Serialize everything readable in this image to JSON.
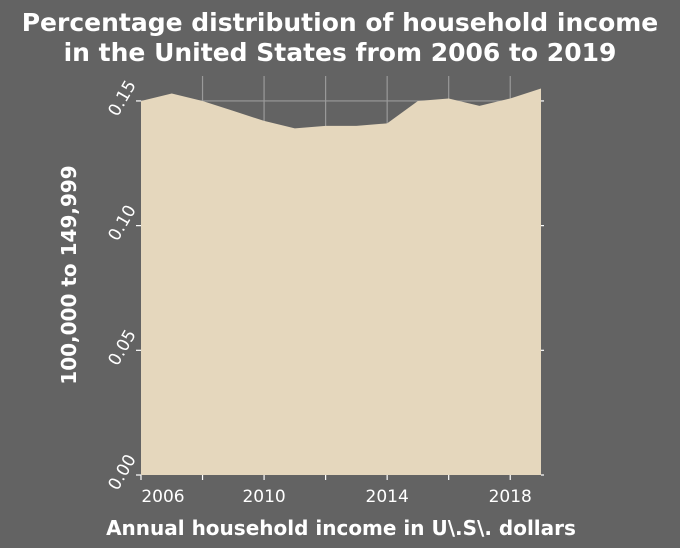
{
  "colors": {
    "background": "#636363",
    "plot_background": "#636363",
    "area_fill": "#e5d7bd",
    "grid": "#9a9a9a",
    "text": "#ffffff"
  },
  "chart_data": {
    "type": "area",
    "title_line1": "Percentage distribution of household income",
    "title_line2": "in the United States from 2006 to 2019",
    "xlabel": "Annual household income in U\\.S\\. dollars",
    "ylabel": "100,000 to 149,999",
    "xlim": [
      2006,
      2019
    ],
    "ylim": [
      0,
      0.16
    ],
    "x_ticks": [
      2006,
      2010,
      2014,
      2018
    ],
    "x_minor_ticks": [
      2008,
      2012,
      2016
    ],
    "y_ticks": [
      0.0,
      0.05,
      0.1,
      0.15
    ],
    "y_tick_labels": [
      "0.00",
      "0.05",
      "0.10",
      "0.15"
    ],
    "grid": true,
    "x": [
      2006,
      2007,
      2008,
      2009,
      2010,
      2011,
      2012,
      2013,
      2014,
      2015,
      2016,
      2017,
      2018,
      2019
    ],
    "values": [
      0.15,
      0.153,
      0.15,
      0.146,
      0.142,
      0.139,
      0.14,
      0.14,
      0.141,
      0.15,
      0.151,
      0.148,
      0.151,
      0.155
    ]
  }
}
